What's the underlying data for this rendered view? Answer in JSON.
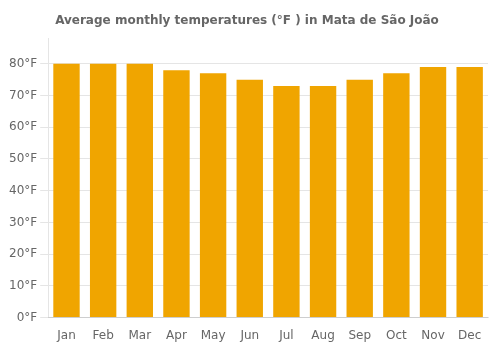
{
  "chart_data": {
    "type": "bar",
    "title": "Average monthly temperatures (°F ) in Mata de São João",
    "categories": [
      "Jan",
      "Feb",
      "Mar",
      "Apr",
      "May",
      "Jun",
      "Jul",
      "Aug",
      "Sep",
      "Oct",
      "Nov",
      "Dec"
    ],
    "values": [
      80,
      80,
      80,
      78,
      77,
      75,
      73,
      73,
      75,
      77,
      79,
      79
    ],
    "color": "#F0A500",
    "ylim": [
      0,
      88
    ],
    "yticks": [
      {
        "value": 0,
        "label": "0°F"
      },
      {
        "value": 10,
        "label": "10°F"
      },
      {
        "value": 20,
        "label": "20°F"
      },
      {
        "value": 30,
        "label": "30°F"
      },
      {
        "value": 40,
        "label": "40°F"
      },
      {
        "value": 50,
        "label": "50°F"
      },
      {
        "value": 60,
        "label": "60°F"
      },
      {
        "value": 70,
        "label": "70°F"
      },
      {
        "value": 80,
        "label": "80°F"
      }
    ],
    "grid": true
  }
}
